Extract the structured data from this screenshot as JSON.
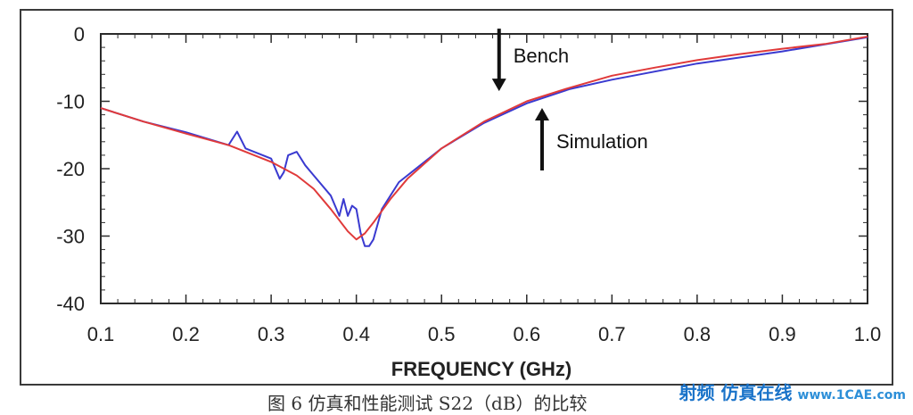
{
  "chart_data": {
    "type": "line",
    "title": "",
    "xlabel": "FREQUENCY (GHz)",
    "ylabel": "",
    "xlim": [
      0.1,
      1.0
    ],
    "ylim": [
      -40,
      0
    ],
    "x_ticks": [
      "0.1",
      "0.2",
      "0.3",
      "0.4",
      "0.5",
      "0.6",
      "0.7",
      "0.8",
      "0.9",
      "1.0"
    ],
    "y_ticks": [
      "0",
      "-10",
      "-20",
      "-30",
      "-40"
    ],
    "x_tick_values": [
      0.1,
      0.2,
      0.3,
      0.4,
      0.5,
      0.6,
      0.7,
      0.8,
      0.9,
      1.0
    ],
    "y_tick_values": [
      0,
      -10,
      -20,
      -30,
      -40
    ],
    "grid": false,
    "series": [
      {
        "name": "Bench",
        "color": "#3a3ad0",
        "x": [
          0.1,
          0.15,
          0.2,
          0.25,
          0.26,
          0.27,
          0.3,
          0.31,
          0.315,
          0.32,
          0.33,
          0.34,
          0.35,
          0.37,
          0.38,
          0.385,
          0.39,
          0.395,
          0.4,
          0.405,
          0.41,
          0.415,
          0.42,
          0.43,
          0.45,
          0.5,
          0.55,
          0.6,
          0.65,
          0.7,
          0.8,
          0.9,
          1.0
        ],
        "y": [
          -11,
          -13,
          -14.6,
          -16.5,
          -14.5,
          -17,
          -18.5,
          -21.5,
          -20.5,
          -18,
          -17.5,
          -19.5,
          -21,
          -24,
          -27,
          -24.5,
          -27,
          -25.5,
          -26,
          -29.5,
          -31.5,
          -31.5,
          -30.5,
          -26,
          -22,
          -17,
          -13.2,
          -10.3,
          -8.2,
          -6.8,
          -4.4,
          -2.6,
          -0.5
        ]
      },
      {
        "name": "Simulation",
        "color": "#e03a3a",
        "x": [
          0.1,
          0.15,
          0.2,
          0.25,
          0.3,
          0.33,
          0.35,
          0.37,
          0.39,
          0.4,
          0.41,
          0.42,
          0.44,
          0.46,
          0.5,
          0.55,
          0.6,
          0.65,
          0.7,
          0.75,
          0.8,
          0.85,
          0.9,
          0.95,
          1.0
        ],
        "y": [
          -11,
          -13,
          -14.8,
          -16.5,
          -19,
          -21,
          -23,
          -26,
          -29.3,
          -30.5,
          -29.6,
          -28,
          -24.5,
          -21.5,
          -17,
          -13,
          -10,
          -8,
          -6.2,
          -5,
          -3.9,
          -3,
          -2.2,
          -1.5,
          -0.4
        ]
      }
    ],
    "annotations": [
      {
        "text": "Bench",
        "target": "Bench",
        "arrow": "down",
        "x": 0.578,
        "y": -8.5
      },
      {
        "text": "Simulation",
        "target": "Simulation",
        "arrow": "up",
        "x": 0.618,
        "y": -11
      }
    ]
  },
  "caption": "图 6 仿真和性能测试 S22（dB）的比较",
  "watermark": {
    "brand": "射频 仿真在线",
    "site": "www.1CAE.com"
  },
  "colors": {
    "axis": "#2b2b2b",
    "text": "#222222"
  }
}
